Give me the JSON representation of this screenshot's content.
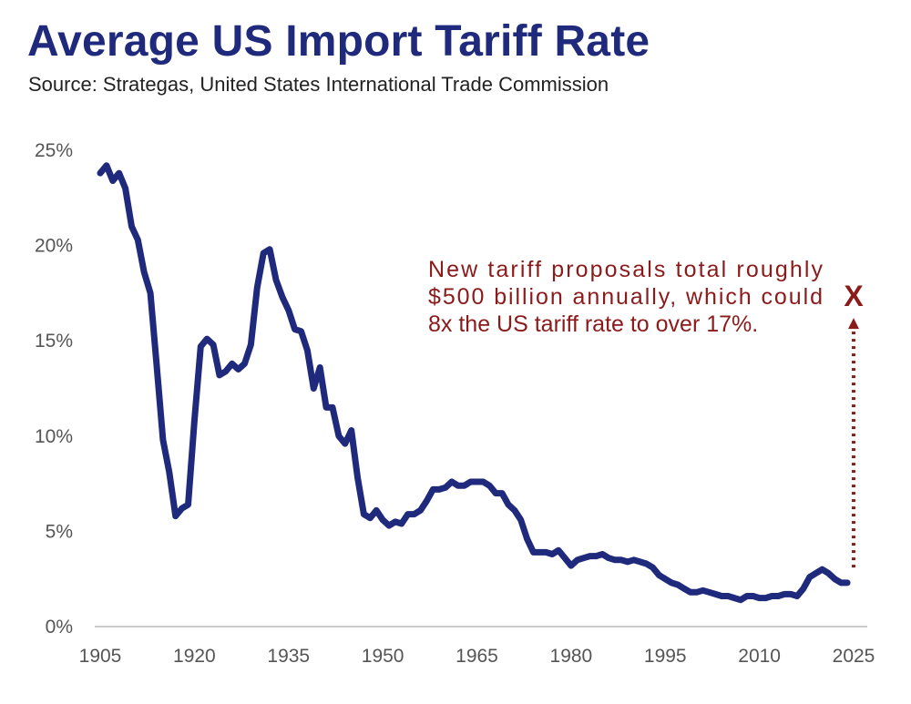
{
  "header": {
    "title": "Average US Import Tariff Rate",
    "subtitle": "Source: Strategas, United States International Trade Commission"
  },
  "chart_data": {
    "type": "line",
    "title": "Average US Import Tariff Rate",
    "subtitle": "Source: Strategas, United States International Trade Commission",
    "xlabel": "",
    "ylabel": "",
    "xlim": [
      1905,
      2025
    ],
    "ylim": [
      0,
      25
    ],
    "x_ticks": [
      "1905",
      "1920",
      "1935",
      "1950",
      "1965",
      "1980",
      "1995",
      "2010",
      "2025"
    ],
    "y_ticks": [
      "0%",
      "5%",
      "10%",
      "15%",
      "20%",
      "25%"
    ],
    "grid": false,
    "line_color": "#1f2a7c",
    "annotation_color": "#8b1a1a",
    "series": [
      {
        "name": "Average US Import Tariff Rate",
        "x": [
          1905,
          1906,
          1907,
          1908,
          1909,
          1910,
          1911,
          1912,
          1913,
          1914,
          1915,
          1916,
          1917,
          1918,
          1919,
          1920,
          1921,
          1922,
          1923,
          1924,
          1925,
          1926,
          1927,
          1928,
          1929,
          1930,
          1931,
          1932,
          1933,
          1934,
          1935,
          1936,
          1937,
          1938,
          1939,
          1940,
          1941,
          1942,
          1943,
          1944,
          1945,
          1946,
          1947,
          1948,
          1949,
          1950,
          1951,
          1952,
          1953,
          1954,
          1955,
          1956,
          1957,
          1958,
          1959,
          1960,
          1961,
          1962,
          1963,
          1964,
          1965,
          1966,
          1967,
          1968,
          1969,
          1970,
          1971,
          1972,
          1973,
          1974,
          1975,
          1976,
          1977,
          1978,
          1979,
          1980,
          1981,
          1982,
          1983,
          1984,
          1985,
          1986,
          1987,
          1988,
          1989,
          1990,
          1991,
          1992,
          1993,
          1994,
          1995,
          1996,
          1997,
          1998,
          1999,
          2000,
          2001,
          2002,
          2003,
          2004,
          2005,
          2006,
          2007,
          2008,
          2009,
          2010,
          2011,
          2012,
          2013,
          2014,
          2015,
          2016,
          2017,
          2018,
          2019,
          2020,
          2021,
          2022,
          2023,
          2024
        ],
        "values": [
          23.8,
          24.2,
          23.4,
          23.8,
          23.0,
          21.0,
          20.3,
          18.6,
          17.5,
          13.7,
          9.8,
          8.1,
          5.8,
          6.2,
          6.4,
          10.8,
          14.7,
          15.1,
          14.8,
          13.2,
          13.4,
          13.8,
          13.5,
          13.8,
          14.8,
          17.8,
          19.6,
          19.8,
          18.2,
          17.3,
          16.6,
          15.6,
          15.5,
          14.5,
          12.5,
          13.6,
          11.5,
          11.5,
          10.0,
          9.6,
          10.3,
          7.8,
          5.9,
          5.7,
          6.1,
          5.6,
          5.3,
          5.5,
          5.4,
          5.9,
          5.9,
          6.1,
          6.6,
          7.2,
          7.2,
          7.3,
          7.6,
          7.4,
          7.4,
          7.6,
          7.6,
          7.6,
          7.4,
          7.0,
          7.0,
          6.4,
          6.1,
          5.6,
          4.6,
          3.9,
          3.9,
          3.9,
          3.8,
          4.0,
          3.6,
          3.2,
          3.5,
          3.6,
          3.7,
          3.7,
          3.8,
          3.6,
          3.5,
          3.5,
          3.4,
          3.5,
          3.4,
          3.3,
          3.1,
          2.7,
          2.5,
          2.3,
          2.2,
          2.0,
          1.8,
          1.8,
          1.9,
          1.8,
          1.7,
          1.6,
          1.6,
          1.5,
          1.4,
          1.6,
          1.6,
          1.5,
          1.5,
          1.6,
          1.6,
          1.7,
          1.7,
          1.6,
          2.0,
          2.6,
          2.8,
          3.0,
          2.8,
          2.5,
          2.3,
          2.3
        ]
      }
    ],
    "annotations": [
      {
        "lines": [
          "New tariff proposals total roughly",
          "$500 billion annually, which could",
          "8x the US tariff rate to over 17%."
        ],
        "marker_text": "X",
        "marker_x": 2025,
        "marker_value": 17.4,
        "arrow_from_value": 3.1,
        "arrow_to_value": 16.2
      }
    ]
  }
}
